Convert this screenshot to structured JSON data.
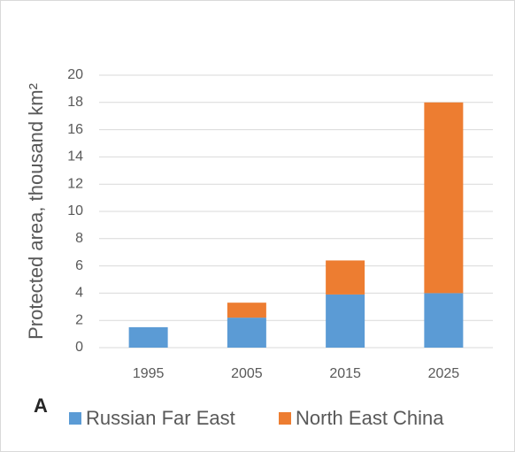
{
  "chart_data": {
    "type": "stacked_bar",
    "panel_label": "A",
    "y_label": "Protected area, thousand km²",
    "categories": [
      "1995",
      "2005",
      "2015",
      "2025"
    ],
    "series": [
      {
        "name": "Russian Far East",
        "color": "#5b9bd5",
        "values": [
          1.5,
          2.2,
          3.9,
          4.0
        ]
      },
      {
        "name": "North East China",
        "color": "#ed7d31",
        "values": [
          0,
          1.1,
          2.5,
          14.0
        ]
      }
    ],
    "ylim": [
      0,
      20
    ],
    "yticks": [
      0,
      2,
      4,
      6,
      8,
      10,
      12,
      14,
      16,
      18,
      20
    ],
    "grid": true
  }
}
